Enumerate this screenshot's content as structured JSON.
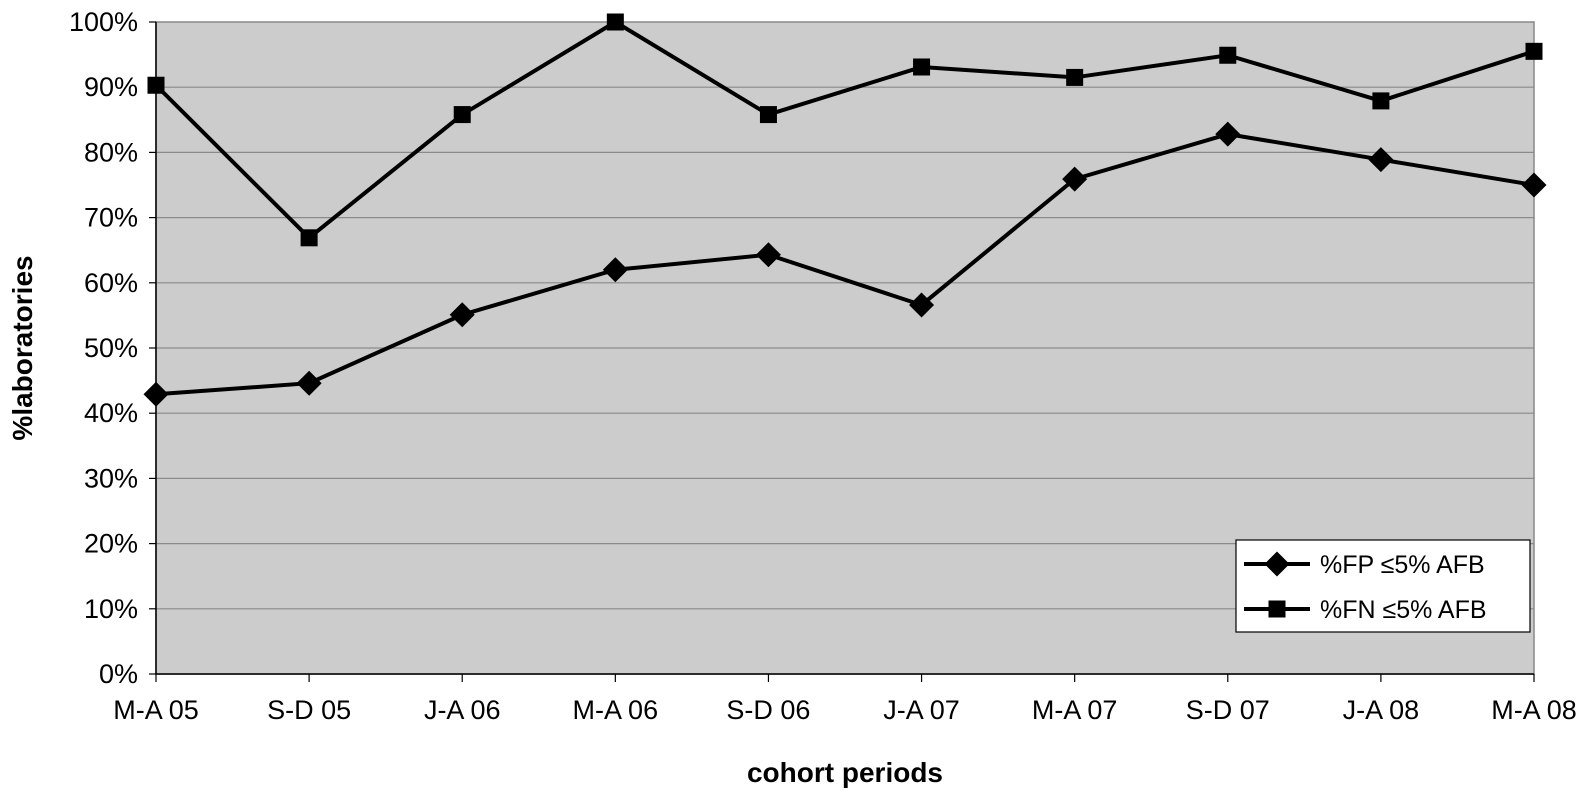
{
  "chart_data": {
    "type": "line",
    "title": "",
    "xlabel": "cohort periods",
    "ylabel": "%laboratories",
    "categories": [
      "M-A 05",
      "S-D 05",
      "J-A 06",
      "M-A 06",
      "S-D 06",
      "J-A 07",
      "M-A 07",
      "S-D 07",
      "J-A 08",
      "M-A 08"
    ],
    "ylim": [
      0,
      100
    ],
    "y_ticks": [
      0,
      10,
      20,
      30,
      40,
      50,
      60,
      70,
      80,
      90,
      100
    ],
    "y_tick_labels": [
      "0%",
      "10%",
      "20%",
      "30%",
      "40%",
      "50%",
      "60%",
      "70%",
      "80%",
      "90%",
      "100%"
    ],
    "grid": true,
    "plot_background": "#cccccc",
    "legend_position": "bottom-right",
    "series": [
      {
        "name": "%FP ≤5% AFB",
        "marker": "diamond",
        "color": "#000000",
        "values": [
          42.9,
          44.6,
          55.1,
          62.0,
          64.3,
          56.6,
          75.9,
          82.8,
          78.9,
          75.0
        ]
      },
      {
        "name": "%FN ≤5% AFB",
        "marker": "square",
        "color": "#000000",
        "values": [
          90.3,
          66.9,
          85.8,
          100.0,
          85.8,
          93.1,
          91.5,
          94.9,
          87.9,
          95.5
        ]
      }
    ]
  }
}
